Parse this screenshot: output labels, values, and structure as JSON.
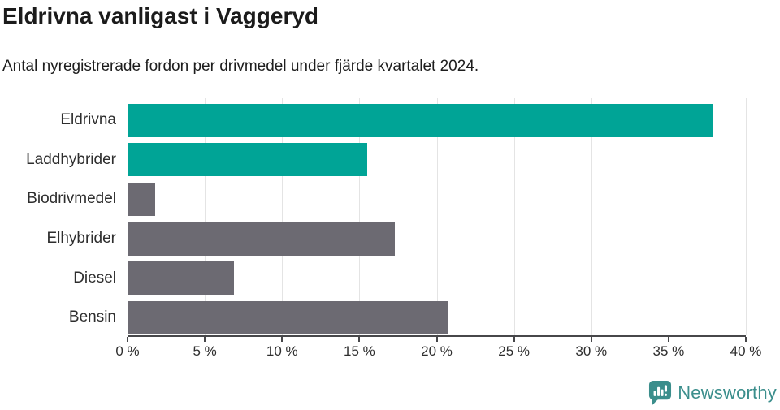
{
  "header": {
    "title": "Eldrivna vanligast i Vaggeryd",
    "subtitle": "Antal nyregistrerade fordon per drivmedel under fjärde kvartalet 2024."
  },
  "chart_data": {
    "type": "bar",
    "orientation": "horizontal",
    "title": "Eldrivna vanligast i Vaggeryd",
    "subtitle": "Antal nyregistrerade fordon per drivmedel under fjärde kvartalet 2024.",
    "categories": [
      "Eldrivna",
      "Laddhybrider",
      "Biodrivmedel",
      "Elhybrider",
      "Diesel",
      "Bensin"
    ],
    "values": [
      37.9,
      15.5,
      1.8,
      17.3,
      6.9,
      20.7
    ],
    "unit": "%",
    "highlighted": [
      true,
      true,
      false,
      false,
      false,
      false
    ],
    "colors": {
      "highlight": "#00a496",
      "default": "#6c6a72",
      "axis": "#47474a",
      "grid": "#e4e4e4",
      "text": "#2e2e2e"
    },
    "xlim": [
      0,
      40
    ],
    "x_ticks": [
      0,
      5,
      10,
      15,
      20,
      25,
      30,
      35,
      40
    ],
    "x_tick_labels": [
      "0 %",
      "5 %",
      "10 %",
      "15 %",
      "20 %",
      "25 %",
      "30 %",
      "35 %",
      "40 %"
    ],
    "grid": "vertical",
    "legend": "none"
  },
  "branding": {
    "logo_text": "Newsworthy",
    "logo_color": "#3b8e8c"
  }
}
